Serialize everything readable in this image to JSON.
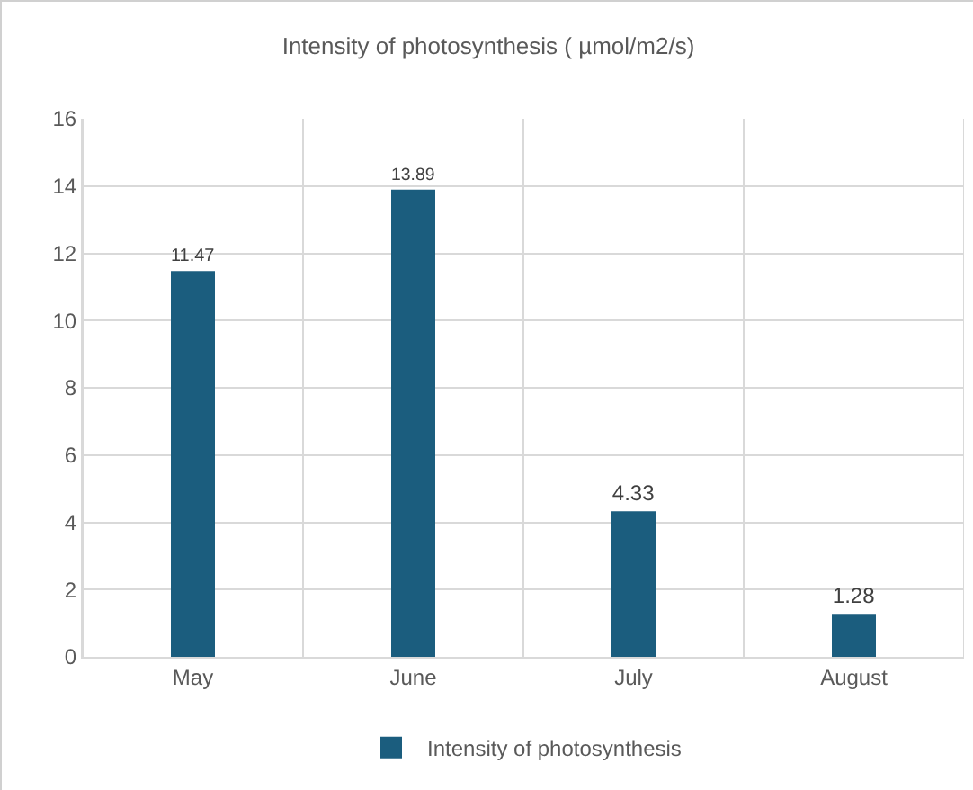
{
  "chart_data": {
    "type": "bar",
    "title": "Intensity of photosynthesis ( µmol/m2/s)",
    "categories": [
      "May",
      "June",
      "July",
      "August"
    ],
    "series": [
      {
        "name": "Intensity of photosynthesis",
        "color": "#1b5d7e",
        "values": [
          11.47,
          13.89,
          4.33,
          1.28
        ]
      }
    ],
    "ylim": [
      0,
      16
    ],
    "yticks": [
      0,
      2,
      4,
      6,
      8,
      10,
      12,
      14,
      16
    ],
    "grid": true,
    "legend": "bottom",
    "data_labels": true
  }
}
